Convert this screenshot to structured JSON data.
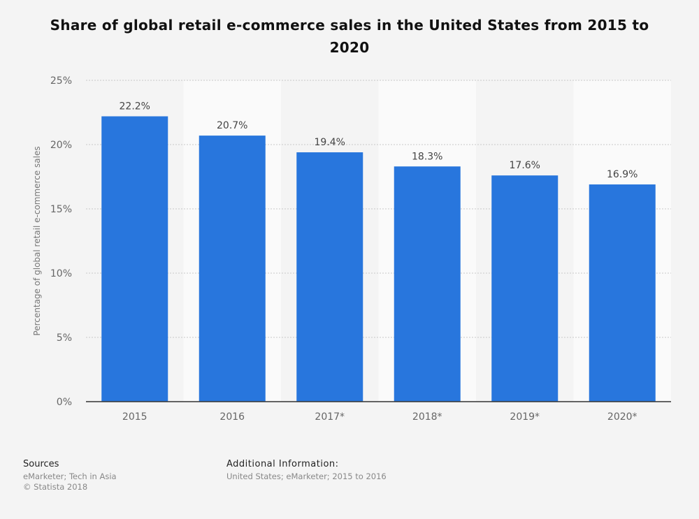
{
  "chart_data": {
    "type": "bar",
    "title": "Share of global retail e-commerce sales in the United States from 2015 to 2020",
    "xlabel": "",
    "ylabel": "Percentage of global retail e-commerce sales",
    "categories": [
      "2015",
      "2016",
      "2017*",
      "2018*",
      "2019*",
      "2020*"
    ],
    "values": [
      22.2,
      20.7,
      19.4,
      18.3,
      17.6,
      16.9
    ],
    "data_labels": [
      "22.2%",
      "20.7%",
      "19.4%",
      "18.3%",
      "17.6%",
      "16.9%"
    ],
    "ylim": [
      0,
      25
    ],
    "yticks": [
      0,
      5,
      10,
      15,
      20,
      25
    ],
    "ytick_labels": [
      "0%",
      "5%",
      "10%",
      "15%",
      "20%",
      "25%"
    ],
    "grid": true,
    "bar_color": "#2876dd"
  },
  "footer": {
    "sources_heading": "Sources",
    "sources_text": "eMarketer; Tech in Asia",
    "copyright": "© Statista 2018",
    "additional_heading": "Additional Information:",
    "additional_text": "United States; eMarketer; 2015 to 2016"
  }
}
